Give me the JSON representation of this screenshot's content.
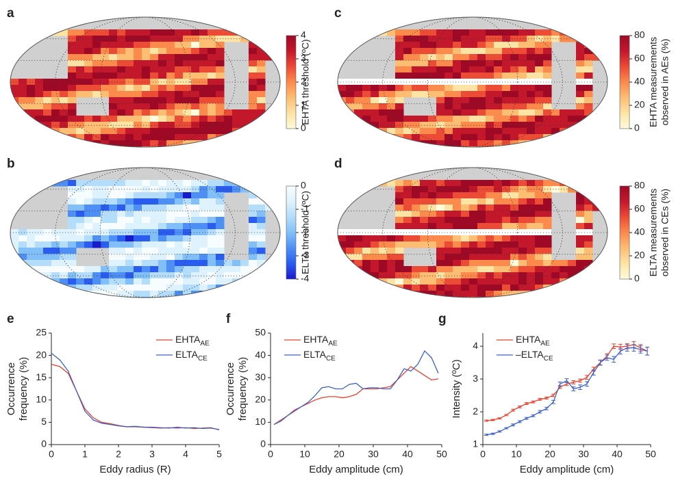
{
  "chart_data": [
    {
      "type": "map",
      "panel_label": "a",
      "colorbar_label": [
        "EHTA threshold (ºC)"
      ],
      "clim": [
        0,
        4
      ],
      "cticks": [
        0,
        1,
        2,
        3,
        4
      ],
      "colormap": [
        "#fffbdc",
        "#fde3a4",
        "#fdbd73",
        "#fc8a4c",
        "#ec4b36",
        "#c3182c",
        "#9e0a26"
      ],
      "equator_gap": false
    },
    {
      "type": "map",
      "panel_label": "b",
      "colorbar_label": [
        "ELTA threshold (ºC)"
      ],
      "clim": [
        -4,
        0
      ],
      "cticks": [
        -4,
        -3,
        -2,
        -1,
        0
      ],
      "colormap": [
        "#1a1acd",
        "#2a5cf0",
        "#4d8ff5",
        "#82bff9",
        "#b4ddfb",
        "#def2fd",
        "#f7fdff"
      ],
      "equator_gap": false
    },
    {
      "type": "map",
      "panel_label": "c",
      "colorbar_label": [
        "EHTA measurements",
        "observed in AEs (%)"
      ],
      "clim": [
        0,
        80
      ],
      "cticks": [
        0,
        20,
        40,
        60,
        80
      ],
      "colormap": [
        "#fffbdc",
        "#fde3a4",
        "#fdbd73",
        "#fc8a4c",
        "#ec4b36",
        "#c3182c",
        "#9e0a26"
      ],
      "equator_gap": true
    },
    {
      "type": "map",
      "panel_label": "d",
      "colorbar_label": [
        "ELTA measurements",
        "observed in CEs (%)"
      ],
      "clim": [
        0,
        80
      ],
      "cticks": [
        0,
        20,
        40,
        60,
        80
      ],
      "colormap": [
        "#fffbdc",
        "#fde3a4",
        "#fdbd73",
        "#fc8a4c",
        "#ec4b36",
        "#c3182c",
        "#9e0a26"
      ],
      "equator_gap": true
    },
    {
      "type": "line",
      "panel_label": "e",
      "xlabel": "Eddy radius (R)",
      "ylabel": [
        "Occurrence",
        "frequency (%)"
      ],
      "xlim": [
        0,
        5
      ],
      "xticks": [
        0,
        1,
        2,
        3,
        4,
        5
      ],
      "ylim": [
        0,
        25
      ],
      "yticks": [
        0,
        5,
        10,
        15,
        20,
        25
      ],
      "legend": "upper right",
      "x": [
        0,
        0.25,
        0.5,
        0.75,
        1,
        1.25,
        1.5,
        1.75,
        2,
        2.25,
        2.5,
        2.75,
        3,
        3.25,
        3.5,
        3.75,
        4,
        4.25,
        4.5,
        4.75,
        5
      ],
      "series": [
        {
          "name": "EHTA",
          "subscript": "AE",
          "color": "#e8402a",
          "values": [
            18,
            17.5,
            16,
            12,
            8,
            6,
            5,
            4.7,
            4.3,
            4,
            4,
            3.9,
            3.8,
            3.7,
            3.8,
            3.7,
            3.8,
            3.6,
            3.7,
            3.8,
            3.3
          ]
        },
        {
          "name": "ELTA",
          "subscript": "CE",
          "color": "#3a5fcd",
          "values": [
            20.5,
            19,
            16.5,
            12,
            7.5,
            5.5,
            4.8,
            4.5,
            4.2,
            4,
            4.1,
            3.9,
            3.9,
            3.8,
            3.7,
            3.9,
            3.7,
            3.8,
            3.6,
            3.7,
            3.4
          ]
        }
      ]
    },
    {
      "type": "line",
      "panel_label": "f",
      "xlabel": "Eddy amplitude (cm)",
      "ylabel": [
        "Occurrence",
        "frequency (%)"
      ],
      "xlim": [
        0,
        50
      ],
      "xticks": [
        0,
        10,
        20,
        30,
        40,
        50
      ],
      "ylim": [
        0,
        50
      ],
      "yticks": [
        0,
        10,
        20,
        30,
        40,
        50
      ],
      "legend": "upper left",
      "x": [
        1,
        3,
        5,
        7,
        9,
        11,
        13,
        15,
        17,
        19,
        21,
        23,
        25,
        27,
        29,
        31,
        33,
        35,
        37,
        39,
        41,
        43,
        45,
        47,
        49
      ],
      "series": [
        {
          "name": "EHTA",
          "subscript": "AE",
          "color": "#e8402a",
          "values": [
            9,
            11,
            13,
            15.5,
            17,
            18.5,
            20,
            21,
            21.5,
            21.5,
            21,
            21.5,
            22.5,
            25,
            25,
            25,
            25.5,
            26,
            29,
            32,
            35,
            33,
            31,
            29,
            29.5
          ]
        },
        {
          "name": "ELTA",
          "subscript": "CE",
          "color": "#3a5fcd",
          "values": [
            9,
            10.5,
            13,
            15,
            17,
            19,
            22,
            25.5,
            26,
            25,
            25,
            27,
            27.5,
            25,
            25.5,
            25.5,
            25,
            25,
            29,
            34,
            33,
            36,
            42,
            39,
            32
          ]
        }
      ]
    },
    {
      "type": "line",
      "panel_label": "g",
      "xlabel": "Eddy amplitude (cm)",
      "ylabel": [
        "Intensity (ºC)"
      ],
      "xlim": [
        0,
        50
      ],
      "xticks": [
        0,
        10,
        20,
        30,
        40,
        50
      ],
      "ylim": [
        1,
        4.4
      ],
      "yticks": [
        1,
        2,
        3,
        4
      ],
      "legend": "upper left",
      "x": [
        1,
        3,
        5,
        7,
        9,
        11,
        13,
        15,
        17,
        19,
        21,
        23,
        25,
        27,
        29,
        31,
        33,
        35,
        37,
        39,
        41,
        43,
        45,
        47,
        49
      ],
      "series": [
        {
          "name": "EHTA",
          "subscript": "AE",
          "color": "#e8402a",
          "values": [
            1.73,
            1.75,
            1.8,
            1.9,
            2.05,
            2.15,
            2.25,
            2.3,
            2.38,
            2.42,
            2.5,
            2.75,
            2.85,
            2.9,
            2.95,
            3.05,
            3.3,
            3.5,
            3.7,
            4.0,
            3.98,
            4.0,
            4.05,
            3.95,
            3.85
          ],
          "errors": [
            0.02,
            0.02,
            0.02,
            0.02,
            0.03,
            0.03,
            0.03,
            0.03,
            0.03,
            0.03,
            0.04,
            0.04,
            0.05,
            0.05,
            0.05,
            0.06,
            0.06,
            0.07,
            0.07,
            0.07,
            0.08,
            0.08,
            0.09,
            0.1,
            0.12
          ]
        },
        {
          "name": "–ELTA",
          "subscript": "CE",
          "color": "#3a5fcd",
          "values": [
            1.3,
            1.33,
            1.4,
            1.5,
            1.6,
            1.7,
            1.8,
            1.88,
            2.0,
            2.1,
            2.3,
            2.85,
            2.95,
            2.7,
            2.75,
            2.85,
            3.2,
            3.5,
            3.65,
            3.6,
            3.85,
            3.95,
            3.95,
            3.9,
            3.85
          ],
          "errors": [
            0.02,
            0.02,
            0.02,
            0.02,
            0.03,
            0.03,
            0.03,
            0.03,
            0.04,
            0.04,
            0.05,
            0.06,
            0.06,
            0.06,
            0.07,
            0.07,
            0.08,
            0.08,
            0.08,
            0.09,
            0.09,
            0.1,
            0.1,
            0.11,
            0.12
          ]
        }
      ]
    }
  ]
}
